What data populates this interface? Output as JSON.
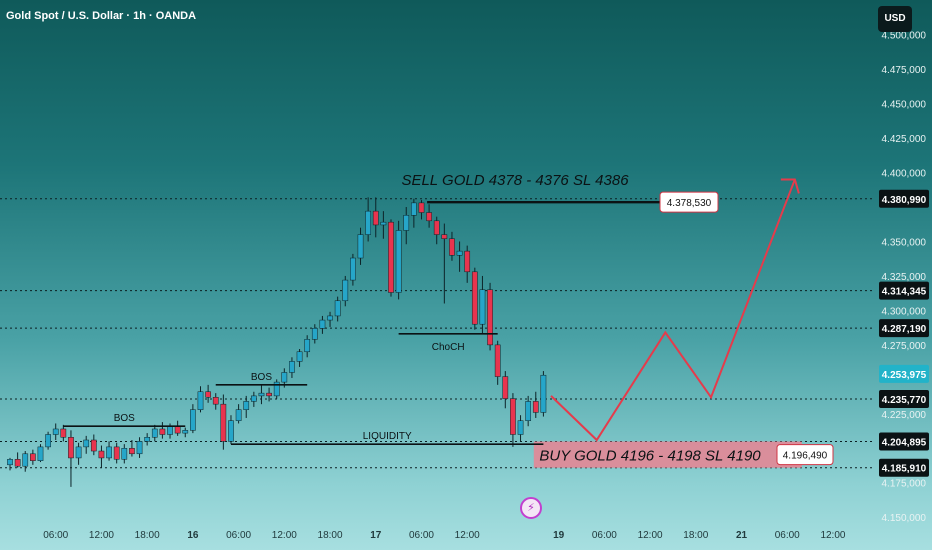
{
  "title": "Gold Spot / U.S. Dollar · 1h · OANDA",
  "currency_label": "USD",
  "lightning_glyph": "⚡",
  "chart_data": {
    "type": "candlestick",
    "title": "Gold Spot / U.S. Dollar · 1h · OANDA",
    "currency": "USD",
    "ylim": [
      4140,
      4515
    ],
    "y_ticks": [
      {
        "value": 4500,
        "label": "4.500,000"
      },
      {
        "value": 4475,
        "label": "4.475,000"
      },
      {
        "value": 4450,
        "label": "4.450,000"
      },
      {
        "value": 4425,
        "label": "4.425,000"
      },
      {
        "value": 4400,
        "label": "4.400,000"
      },
      {
        "value": 4350,
        "label": "4.350,000"
      },
      {
        "value": 4325,
        "label": "4.325,000"
      },
      {
        "value": 4300,
        "label": "4.300,000"
      },
      {
        "value": 4275,
        "label": "4.275,000"
      },
      {
        "value": 4225,
        "label": "4.225,000"
      },
      {
        "value": 4175,
        "label": "4.175,000"
      },
      {
        "value": 4150,
        "label": "4.150,000"
      }
    ],
    "price_labels": [
      {
        "value": 4380.99,
        "label": "4.380,990",
        "style": "dark"
      },
      {
        "value": 4314.345,
        "label": "4.314,345",
        "style": "dark"
      },
      {
        "value": 4287.19,
        "label": "4.287,190",
        "style": "dark"
      },
      {
        "value": 4253.975,
        "label": "4.253,975",
        "style": "cyan"
      },
      {
        "value": 4235.77,
        "label": "4.235,770",
        "style": "dark"
      },
      {
        "value": 4204.895,
        "label": "4.204,895",
        "style": "dark"
      },
      {
        "value": 4185.91,
        "label": "4.185,910",
        "style": "dark"
      }
    ],
    "dotted_levels": [
      4380.99,
      4314.345,
      4287.19,
      4235.77,
      4204.895,
      4185.91
    ],
    "x_ticks": [
      {
        "label": "06:00",
        "idx": 6
      },
      {
        "label": "12:00",
        "idx": 12
      },
      {
        "label": "18:00",
        "idx": 18
      },
      {
        "label": "16",
        "idx": 24,
        "bold": true
      },
      {
        "label": "06:00",
        "idx": 30
      },
      {
        "label": "12:00",
        "idx": 36
      },
      {
        "label": "18:00",
        "idx": 42
      },
      {
        "label": "17",
        "idx": 48,
        "bold": true
      },
      {
        "label": "06:00",
        "idx": 54
      },
      {
        "label": "12:00",
        "idx": 60
      },
      {
        "label": "19",
        "idx": 72,
        "bold": true
      },
      {
        "label": "06:00",
        "idx": 78
      },
      {
        "label": "12:00",
        "idx": 84
      },
      {
        "label": "18:00",
        "idx": 90
      },
      {
        "label": "21",
        "idx": 96,
        "bold": true
      },
      {
        "label": "06:00",
        "idx": 102
      },
      {
        "label": "12:00",
        "idx": 108
      }
    ],
    "candles": [
      [
        4188,
        4193,
        4184,
        4192
      ],
      [
        4192,
        4197,
        4186,
        4187
      ],
      [
        4187,
        4198,
        4183,
        4196
      ],
      [
        4196,
        4199,
        4188,
        4191
      ],
      [
        4191,
        4203,
        4190,
        4201
      ],
      [
        4201,
        4212,
        4199,
        4210
      ],
      [
        4210,
        4218,
        4206,
        4214
      ],
      [
        4214,
        4217,
        4205,
        4208
      ],
      [
        4208,
        4213,
        4172,
        4193
      ],
      [
        4193,
        4204,
        4188,
        4201
      ],
      [
        4201,
        4209,
        4196,
        4206
      ],
      [
        4206,
        4210,
        4195,
        4198
      ],
      [
        4198,
        4202,
        4186,
        4193
      ],
      [
        4193,
        4205,
        4191,
        4201
      ],
      [
        4201,
        4204,
        4189,
        4192
      ],
      [
        4192,
        4203,
        4189,
        4200
      ],
      [
        4200,
        4206,
        4194,
        4196
      ],
      [
        4196,
        4208,
        4193,
        4205
      ],
      [
        4205,
        4211,
        4202,
        4208
      ],
      [
        4208,
        4217,
        4205,
        4214
      ],
      [
        4214,
        4219,
        4207,
        4210
      ],
      [
        4210,
        4218,
        4207,
        4216
      ],
      [
        4216,
        4220,
        4209,
        4211
      ],
      [
        4211,
        4215,
        4208,
        4213
      ],
      [
        4213,
        4232,
        4211,
        4228
      ],
      [
        4228,
        4245,
        4226,
        4241
      ],
      [
        4241,
        4246,
        4233,
        4237
      ],
      [
        4237,
        4240,
        4228,
        4232
      ],
      [
        4232,
        4239,
        4199,
        4205
      ],
      [
        4205,
        4224,
        4203,
        4220
      ],
      [
        4220,
        4232,
        4218,
        4228
      ],
      [
        4228,
        4238,
        4222,
        4234
      ],
      [
        4234,
        4241,
        4230,
        4238
      ],
      [
        4238,
        4246,
        4232,
        4240
      ],
      [
        4240,
        4244,
        4234,
        4238
      ],
      [
        4238,
        4250,
        4236,
        4248
      ],
      [
        4248,
        4258,
        4244,
        4255
      ],
      [
        4255,
        4266,
        4251,
        4263
      ],
      [
        4263,
        4272,
        4259,
        4270
      ],
      [
        4270,
        4282,
        4266,
        4279
      ],
      [
        4279,
        4290,
        4276,
        4287
      ],
      [
        4287,
        4296,
        4283,
        4293
      ],
      [
        4293,
        4299,
        4288,
        4296
      ],
      [
        4296,
        4310,
        4292,
        4307
      ],
      [
        4307,
        4325,
        4303,
        4322
      ],
      [
        4322,
        4341,
        4318,
        4338
      ],
      [
        4338,
        4360,
        4333,
        4355
      ],
      [
        4355,
        4382,
        4350,
        4372
      ],
      [
        4372,
        4382,
        4353,
        4362
      ],
      [
        4362,
        4372,
        4352,
        4364
      ],
      [
        4364,
        4366,
        4310,
        4313
      ],
      [
        4313,
        4365,
        4308,
        4358
      ],
      [
        4358,
        4375,
        4348,
        4369
      ],
      [
        4369,
        4381,
        4360,
        4378
      ],
      [
        4378,
        4380,
        4366,
        4371
      ],
      [
        4371,
        4377,
        4360,
        4365
      ],
      [
        4365,
        4368,
        4348,
        4355
      ],
      [
        4355,
        4363,
        4305,
        4352
      ],
      [
        4352,
        4357,
        4336,
        4340
      ],
      [
        4340,
        4350,
        4328,
        4343
      ],
      [
        4343,
        4347,
        4320,
        4328
      ],
      [
        4328,
        4331,
        4286,
        4290
      ],
      [
        4290,
        4325,
        4283,
        4315
      ],
      [
        4315,
        4320,
        4271,
        4275
      ],
      [
        4275,
        4278,
        4246,
        4252
      ],
      [
        4252,
        4256,
        4229,
        4236
      ],
      [
        4236,
        4240,
        4201,
        4210
      ],
      [
        4210,
        4224,
        4205,
        4220
      ],
      [
        4220,
        4238,
        4216,
        4234
      ],
      [
        4234,
        4241,
        4222,
        4226
      ],
      [
        4226,
        4256,
        4223,
        4253
      ]
    ],
    "bullish_color": "#26a6c9",
    "bearish_color": "#e8344e",
    "annotations": [
      {
        "text": "BOS",
        "kind": "structure",
        "from_idx": 7,
        "to_idx": 23,
        "value": 4216
      },
      {
        "text": "BOS",
        "kind": "structure",
        "from_idx": 27,
        "to_idx": 39,
        "value": 4246
      },
      {
        "text": "ChoCH",
        "kind": "structure",
        "from_idx": 51,
        "to_idx": 64,
        "value": 4283
      },
      {
        "text": "LIQUIDITY",
        "kind": "structure",
        "from_idx": 29,
        "to_idx": 70,
        "value": 4203
      },
      {
        "text": "SELL GOLD 4378 - 4376 SL 4386",
        "kind": "signal",
        "value": 4378.53,
        "price_label": "4.378,530",
        "from_idx": 55,
        "to_idx": 90
      },
      {
        "text": "BUY GOLD 4196 - 4198 SL 4190",
        "kind": "signal",
        "zone": [
          4185.91,
          4204.895
        ],
        "price_label": "4.196,490",
        "from_idx": 69,
        "to_idx": 110
      }
    ],
    "projection_path": [
      {
        "idx": 71,
        "value": 4238
      },
      {
        "idx": 77,
        "value": 4206
      },
      {
        "idx": 86,
        "value": 4284
      },
      {
        "idx": 92,
        "value": 4237
      },
      {
        "idx": 103,
        "value": 4395
      }
    ],
    "projection_color": "#e53b4b"
  }
}
